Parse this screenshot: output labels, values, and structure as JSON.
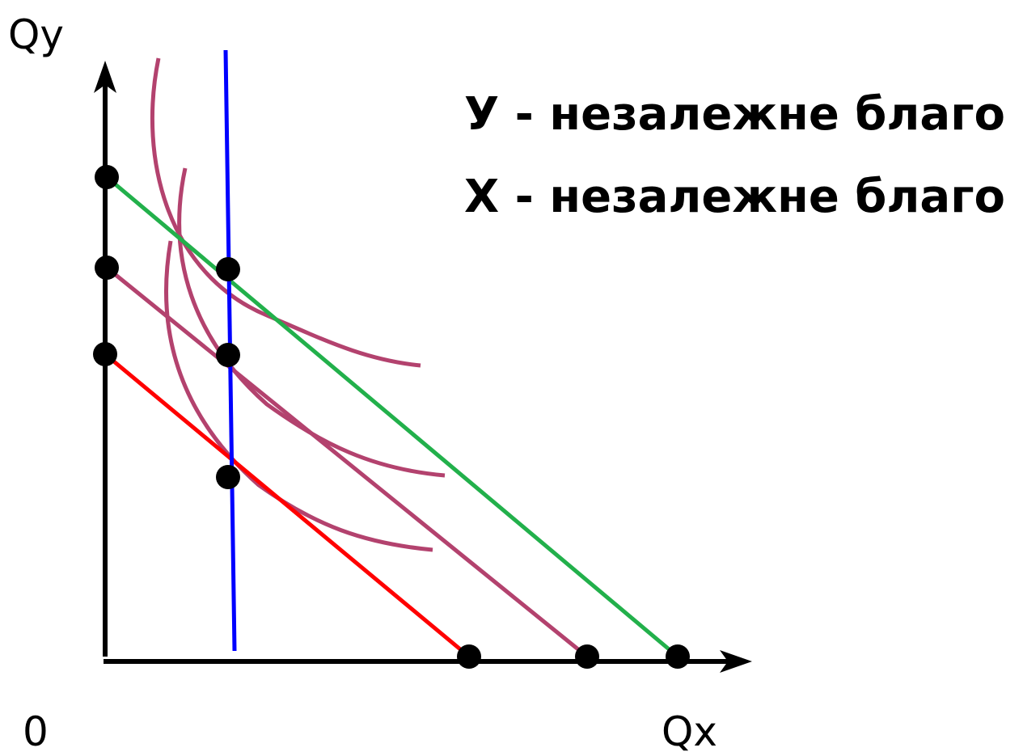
{
  "axes": {
    "y_label": "Qy",
    "x_label": "Qx",
    "origin_label": "0"
  },
  "legend": {
    "line1": "У - незалежне благо",
    "line2": "Х - незалежне благо"
  },
  "colors": {
    "axis": "#000000",
    "budget_high": "#22b04b",
    "budget_mid": "#b3426e",
    "budget_low": "#ff0000",
    "indifference": "#b3426e",
    "income_consumption": "#0000ff",
    "point": "#000000"
  }
}
